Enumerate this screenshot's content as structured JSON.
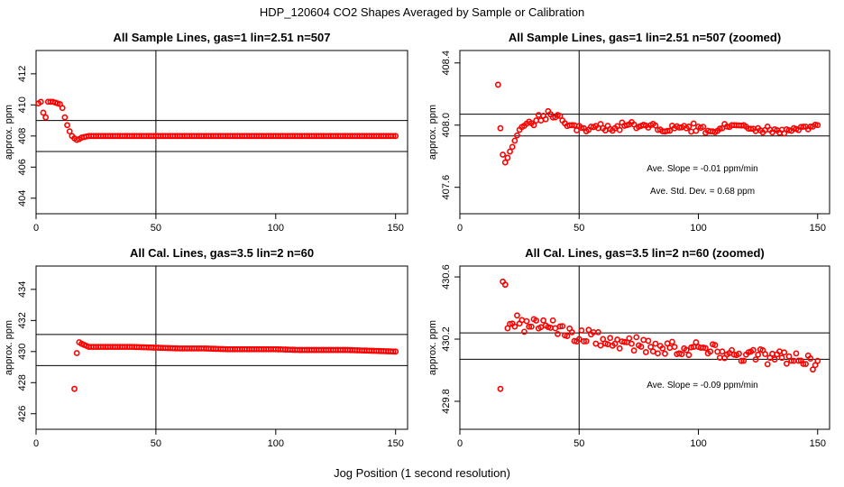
{
  "figure": {
    "title": "HDP_120604  CO2 Shapes Averaged by Sample or Calibration",
    "xlabel": "Jog Position (1 second resolution)"
  },
  "chart_data": [
    {
      "type": "scatter",
      "title": "All Sample Lines, gas=1 lin=2.51 n=507",
      "ylabel": "approx. ppm",
      "xlim": [
        0,
        155
      ],
      "ylim": [
        403,
        413.5
      ],
      "xticks": [
        0,
        50,
        100,
        150
      ],
      "yticks": [
        404,
        406,
        408,
        410,
        412
      ],
      "ref_lines": {
        "v": [
          50
        ],
        "h": [
          409,
          407
        ]
      },
      "marker_color": "#ff0000",
      "anchors": [
        [
          1,
          410.1
        ],
        [
          2,
          410.2
        ],
        [
          3,
          409.5
        ],
        [
          4,
          409.2
        ],
        [
          5,
          410.2
        ],
        [
          6,
          410.2
        ],
        [
          7,
          410.2
        ],
        [
          8,
          410.15
        ],
        [
          9,
          410.1
        ],
        [
          10,
          410.05
        ],
        [
          11,
          409.8
        ],
        [
          12,
          409.2
        ],
        [
          13,
          408.7
        ],
        [
          14,
          408.3
        ],
        [
          15,
          408.0
        ],
        [
          16,
          407.85
        ],
        [
          17,
          407.75
        ],
        [
          18,
          407.8
        ],
        [
          19,
          407.9
        ],
        [
          22,
          408.0
        ],
        [
          150,
          408.0
        ]
      ],
      "values_note": "",
      "annotations": []
    },
    {
      "type": "scatter",
      "title": "All Sample Lines, gas=1 lin=2.51 n=507 (zoomed)",
      "ylabel": "approx. ppm",
      "xlim": [
        0,
        155
      ],
      "ylim": [
        407.43,
        408.48
      ],
      "xticks": [
        0,
        50,
        100,
        150
      ],
      "yticks": [
        407.6,
        408.0,
        408.4
      ],
      "ref_lines": {
        "v": [
          50
        ],
        "h": [
          408.07,
          407.93
        ]
      },
      "marker_color": "#ff0000",
      "anchors": [
        [
          16,
          408.26
        ],
        [
          17,
          407.98
        ],
        [
          18,
          407.81
        ],
        [
          19,
          407.76
        ],
        [
          20,
          407.79
        ],
        [
          21,
          407.83
        ],
        [
          22,
          407.86
        ],
        [
          23,
          407.9
        ],
        [
          25,
          407.97
        ],
        [
          28,
          408.01
        ],
        [
          32,
          408.03
        ],
        [
          35,
          408.06
        ],
        [
          38,
          408.07
        ],
        [
          40,
          408.05
        ],
        [
          43,
          408.03
        ],
        [
          47,
          408.0
        ],
        [
          52,
          407.98
        ],
        [
          55,
          407.99
        ],
        [
          60,
          407.98
        ],
        [
          65,
          407.98
        ],
        [
          70,
          408.0
        ],
        [
          75,
          407.99
        ],
        [
          80,
          408.0
        ],
        [
          85,
          407.96
        ],
        [
          90,
          407.98
        ],
        [
          95,
          407.98
        ],
        [
          100,
          407.99
        ],
        [
          105,
          407.96
        ],
        [
          110,
          407.98
        ],
        [
          115,
          408.0
        ],
        [
          120,
          407.99
        ],
        [
          125,
          407.98
        ],
        [
          130,
          407.97
        ],
        [
          135,
          407.97
        ],
        [
          140,
          407.98
        ],
        [
          145,
          407.99
        ],
        [
          150,
          408.0
        ]
      ],
      "annotations": [
        "Ave. Slope =  -0.01  ppm/min",
        "Ave. Std. Dev. =  0.68  ppm"
      ]
    },
    {
      "type": "scatter",
      "title": "All Cal. Lines, gas=3.5 lin=2 n=60",
      "ylabel": "approx. ppm",
      "xlim": [
        0,
        155
      ],
      "ylim": [
        425,
        435.5
      ],
      "xticks": [
        0,
        50,
        100,
        150
      ],
      "yticks": [
        426,
        428,
        430,
        432,
        434
      ],
      "ref_lines": {
        "v": [
          50
        ],
        "h": [
          431.1,
          429.1
        ]
      },
      "marker_color": "#ff0000",
      "anchors": [
        [
          16,
          427.6
        ],
        [
          17,
          429.9
        ],
        [
          18,
          430.6
        ],
        [
          19,
          430.5
        ],
        [
          22,
          430.3
        ],
        [
          30,
          430.3
        ],
        [
          40,
          430.3
        ],
        [
          50,
          430.25
        ],
        [
          60,
          430.2
        ],
        [
          70,
          430.2
        ],
        [
          80,
          430.15
        ],
        [
          90,
          430.15
        ],
        [
          100,
          430.15
        ],
        [
          110,
          430.1
        ],
        [
          120,
          430.1
        ],
        [
          130,
          430.1
        ],
        [
          140,
          430.05
        ],
        [
          150,
          430.0
        ]
      ],
      "annotations": []
    },
    {
      "type": "scatter",
      "title": "All Cal. Lines, gas=3.5 lin=2 n=60 (zoomed)",
      "ylabel": "approx. ppm",
      "xlim": [
        0,
        155
      ],
      "ylim": [
        429.62,
        430.67
      ],
      "xticks": [
        0,
        50,
        100,
        150
      ],
      "yticks": [
        429.8,
        430.2,
        430.6
      ],
      "ref_lines": {
        "v": [
          50
        ],
        "h": [
          430.24,
          430.07
        ]
      },
      "marker_color": "#ff0000",
      "anchors": [
        [
          17,
          429.88
        ],
        [
          18,
          430.57
        ],
        [
          19,
          430.55
        ],
        [
          20,
          430.27
        ],
        [
          22,
          430.3
        ],
        [
          25,
          430.3
        ],
        [
          30,
          430.28
        ],
        [
          35,
          430.32
        ],
        [
          40,
          430.27
        ],
        [
          45,
          430.22
        ],
        [
          50,
          430.2
        ],
        [
          55,
          430.23
        ],
        [
          60,
          430.2
        ],
        [
          65,
          430.17
        ],
        [
          70,
          430.18
        ],
        [
          75,
          430.16
        ],
        [
          80,
          430.15
        ],
        [
          85,
          430.14
        ],
        [
          90,
          430.15
        ],
        [
          95,
          430.13
        ],
        [
          100,
          430.15
        ],
        [
          105,
          430.12
        ],
        [
          110,
          430.12
        ],
        [
          115,
          430.1
        ],
        [
          120,
          430.1
        ],
        [
          125,
          430.1
        ],
        [
          130,
          430.08
        ],
        [
          135,
          430.08
        ],
        [
          140,
          430.06
        ],
        [
          145,
          430.04
        ],
        [
          150,
          430.06
        ]
      ],
      "annotations": [
        "Ave. Slope =  -0.09  ppm/min"
      ]
    }
  ]
}
